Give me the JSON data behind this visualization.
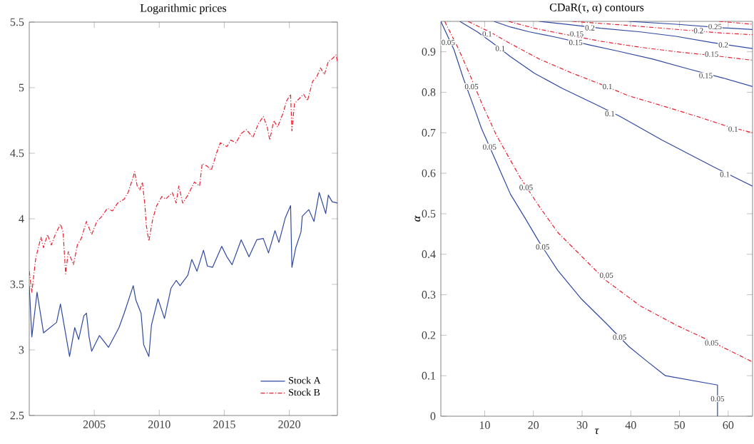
{
  "chart_data": [
    {
      "type": "line",
      "title": "Logarithmic prices",
      "xlim": [
        2000,
        2023.7
      ],
      "ylim": [
        2.5,
        5.5
      ],
      "xticks": [
        2005,
        2010,
        2015,
        2020
      ],
      "yticks": [
        2.5,
        3,
        3.5,
        4,
        4.5,
        5,
        5.5
      ],
      "legend": "bottom right",
      "series": [
        {
          "name": "Stock A",
          "color": "#3049a0",
          "line_style": "solid",
          "x": [
            2000.0,
            2000.2,
            2000.6,
            2001.1,
            2002.1,
            2002.4,
            2003.1,
            2003.5,
            2003.8,
            2004.2,
            2004.4,
            2004.6,
            2004.8,
            2005.4,
            2006.1,
            2006.9,
            2007.3,
            2008.0,
            2008.2,
            2008.6,
            2008.8,
            2009.2,
            2009.4,
            2009.9,
            2010.4,
            2010.9,
            2011.3,
            2011.6,
            2012.2,
            2012.5,
            2012.9,
            2013.4,
            2013.7,
            2014.1,
            2014.8,
            2015.2,
            2015.6,
            2016.3,
            2016.9,
            2017.5,
            2018.0,
            2018.4,
            2018.9,
            2019.2,
            2019.7,
            2020.1,
            2020.2,
            2020.5,
            2020.9,
            2021.0,
            2021.5,
            2021.9,
            2022.3,
            2022.8,
            2023.0,
            2023.3,
            2023.7
          ],
          "values": [
            3.49,
            3.1,
            3.44,
            3.13,
            3.21,
            3.35,
            2.95,
            3.17,
            3.08,
            3.26,
            3.28,
            3.1,
            2.99,
            3.11,
            3.02,
            3.17,
            3.28,
            3.49,
            3.38,
            3.28,
            3.04,
            2.95,
            3.19,
            3.39,
            3.24,
            3.47,
            3.53,
            3.49,
            3.57,
            3.69,
            3.6,
            3.76,
            3.64,
            3.63,
            3.79,
            3.71,
            3.65,
            3.84,
            3.71,
            3.84,
            3.85,
            3.74,
            3.91,
            3.82,
            4.01,
            4.1,
            3.63,
            3.78,
            3.9,
            4.02,
            4.07,
            3.98,
            4.2,
            4.04,
            4.18,
            4.13,
            4.12
          ]
        },
        {
          "name": "Stock B",
          "color": "#e82030",
          "line_style": "dashdot",
          "x": [
            2000.0,
            2000.2,
            2000.5,
            2000.9,
            2001.1,
            2001.4,
            2001.7,
            2002.0,
            2002.4,
            2002.6,
            2002.8,
            2003.0,
            2003.2,
            2003.4,
            2003.7,
            2004.0,
            2004.4,
            2004.8,
            2005.2,
            2005.6,
            2006.0,
            2006.4,
            2006.8,
            2007.3,
            2007.6,
            2008.0,
            2008.1,
            2008.3,
            2008.5,
            2008.7,
            2008.9,
            2009.0,
            2009.2,
            2009.5,
            2009.8,
            2010.2,
            2010.5,
            2011.0,
            2011.3,
            2011.5,
            2011.8,
            2012.2,
            2012.7,
            2013.1,
            2013.3,
            2013.7,
            2014.0,
            2014.4,
            2014.7,
            2015.2,
            2015.5,
            2015.9,
            2016.3,
            2016.7,
            2017.2,
            2017.6,
            2018.0,
            2018.3,
            2018.5,
            2018.8,
            2019.1,
            2019.5,
            2019.8,
            2020.1,
            2020.2,
            2020.4,
            2020.8,
            2021.1,
            2021.4,
            2021.8,
            2022.1,
            2022.4,
            2022.7,
            2023.0,
            2023.3,
            2023.6,
            2023.7
          ],
          "values": [
            3.6,
            3.44,
            3.7,
            3.86,
            3.78,
            3.88,
            3.8,
            3.88,
            3.96,
            3.9,
            3.58,
            3.75,
            3.7,
            3.65,
            3.8,
            3.85,
            3.98,
            3.88,
            3.98,
            4.02,
            4.08,
            4.06,
            4.12,
            4.15,
            4.2,
            4.32,
            4.36,
            4.25,
            4.22,
            4.28,
            4.1,
            3.95,
            3.83,
            4.0,
            4.1,
            4.17,
            4.15,
            4.2,
            4.12,
            4.25,
            4.12,
            4.18,
            4.28,
            4.25,
            4.42,
            4.4,
            4.37,
            4.5,
            4.58,
            4.55,
            4.6,
            4.58,
            4.65,
            4.68,
            4.62,
            4.72,
            4.78,
            4.7,
            4.6,
            4.75,
            4.7,
            4.8,
            4.9,
            4.95,
            4.67,
            4.88,
            4.92,
            4.95,
            4.9,
            5.05,
            5.08,
            5.15,
            5.1,
            5.2,
            5.22,
            5.25,
            5.2
          ]
        }
      ]
    },
    {
      "type": "line",
      "title": "CDaR(τ, α) contours",
      "xlabel": "τ",
      "ylabel": "α",
      "xlim": [
        1,
        65
      ],
      "ylim": [
        0,
        0.975
      ],
      "xticks": [
        10,
        20,
        30,
        40,
        50,
        60
      ],
      "yticks": [
        0,
        0.1,
        0.2,
        0.3,
        0.4,
        0.5,
        0.6,
        0.7,
        0.8,
        0.9
      ],
      "series": [
        {
          "color": "#3049a0",
          "line_style": "solid",
          "x": [
            1.0,
            3.7,
            5.6,
            8.1,
            9.3,
            11.9,
            15.3,
            18.3,
            21.2,
            25.0,
            29.9,
            34.8,
            39.6,
            43.5,
            47.1,
            57.8,
            57.8
          ],
          "values": [
            0.975,
            0.905,
            0.835,
            0.753,
            0.712,
            0.641,
            0.548,
            0.489,
            0.43,
            0.36,
            0.289,
            0.231,
            0.172,
            0.134,
            0.1,
            0.077,
            0
          ]
        },
        {
          "color": "#e82030",
          "line_style": "dashdot",
          "x": [
            1.8,
            4.7,
            6.6,
            9.5,
            12.4,
            17.3,
            21.2,
            25.0,
            29.9,
            34.8,
            42.0,
            49.3,
            56.6,
            65
          ],
          "values": [
            0.975,
            0.905,
            0.853,
            0.77,
            0.694,
            0.589,
            0.518,
            0.454,
            0.395,
            0.336,
            0.272,
            0.225,
            0.184,
            0.134
          ]
        },
        {
          "color": "#3049a0",
          "line_style": "solid",
          "x": [
            4.9,
            8.5,
            11.5,
            15.3,
            20.2,
            26.0,
            32.8,
            37.7,
            46.4,
            57.1,
            65
          ],
          "values": [
            0.975,
            0.949,
            0.923,
            0.888,
            0.847,
            0.809,
            0.77,
            0.741,
            0.682,
            0.615,
            0.568
          ]
        },
        {
          "color": "#e82030",
          "line_style": "dashdot",
          "x": [
            6.6,
            11.5,
            15.3,
            21.2,
            28.0,
            33.8,
            39.6,
            46.9,
            54.2,
            60.0,
            65
          ],
          "values": [
            0.975,
            0.946,
            0.92,
            0.882,
            0.847,
            0.82,
            0.791,
            0.765,
            0.738,
            0.715,
            0.7
          ]
        },
        {
          "color": "#3049a0",
          "line_style": "solid",
          "x": [
            11.9,
            15.3,
            19.2,
            25.0,
            31.4,
            37.2,
            44.5,
            51.7,
            59.0,
            65
          ],
          "values": [
            0.975,
            0.961,
            0.949,
            0.935,
            0.917,
            0.902,
            0.882,
            0.858,
            0.835,
            0.814
          ]
        },
        {
          "color": "#e82030",
          "line_style": "dashdot",
          "x": [
            14.9,
            20.2,
            26.0,
            33.8,
            42.0,
            49.3,
            56.6,
            65
          ],
          "values": [
            0.975,
            0.958,
            0.944,
            0.926,
            0.911,
            0.9,
            0.891,
            0.879
          ]
        },
        {
          "color": "#3049a0",
          "line_style": "solid",
          "x": [
            21.2,
            27.5,
            33.8,
            42.0,
            49.3,
            56.6,
            65
          ],
          "values": [
            0.975,
            0.967,
            0.958,
            0.949,
            0.938,
            0.923,
            0.908
          ]
        },
        {
          "color": "#e82030",
          "line_style": "dashdot",
          "x": [
            28.0,
            39.6,
            51.7,
            59.0,
            65
          ],
          "values": [
            0.975,
            0.965,
            0.953,
            0.946,
            0.942
          ]
        },
        {
          "color": "#3049a0",
          "line_style": "solid",
          "x": [
            39.6,
            49.3,
            59.0,
            65
          ],
          "values": [
            0.975,
            0.968,
            0.959,
            0.955
          ]
        },
        {
          "color": "#e82030",
          "line_style": "dashdot",
          "x": [
            58.1,
            65
          ],
          "values": [
            0.975,
            0.968
          ]
        }
      ],
      "annotations": [
        {
          "text": "0.05",
          "x": 2.5,
          "y": 0.923
        },
        {
          "text": "0.05",
          "x": 11.0,
          "y": 0.665
        },
        {
          "text": "0.05",
          "x": 21.9,
          "y": 0.418
        },
        {
          "text": "0.05",
          "x": 37.7,
          "y": 0.195
        },
        {
          "text": "0.05",
          "x": 57.8,
          "y": 0.043
        },
        {
          "text": "0.05",
          "x": 7.3,
          "y": 0.814
        },
        {
          "text": "0.05",
          "x": 18.5,
          "y": 0.565
        },
        {
          "text": "0.05",
          "x": 35.0,
          "y": 0.348
        },
        {
          "text": "0.05",
          "x": 56.6,
          "y": 0.181
        },
        {
          "text": "0.1",
          "x": 13.2,
          "y": 0.908
        },
        {
          "text": "0.1",
          "x": 35.7,
          "y": 0.747
        },
        {
          "text": "0.1",
          "x": 59.3,
          "y": 0.597
        },
        {
          "text": "0.1",
          "x": 10.5,
          "y": 0.944
        },
        {
          "text": "0.1",
          "x": 35.2,
          "y": 0.814
        },
        {
          "text": "0.1",
          "x": 61.0,
          "y": 0.709
        },
        {
          "text": "0.15",
          "x": 28.7,
          "y": 0.923
        },
        {
          "text": "0.15",
          "x": 55.4,
          "y": 0.841
        },
        {
          "text": "0.15",
          "x": 28.9,
          "y": 0.944
        },
        {
          "text": "0.15",
          "x": 56.6,
          "y": 0.894
        },
        {
          "text": "0.2",
          "x": 31.6,
          "y": 0.959
        },
        {
          "text": "0.2",
          "x": 59.0,
          "y": 0.917
        },
        {
          "text": "0.2",
          "x": 53.9,
          "y": 0.952
        },
        {
          "text": "0.25",
          "x": 57.3,
          "y": 0.962
        }
      ]
    }
  ]
}
